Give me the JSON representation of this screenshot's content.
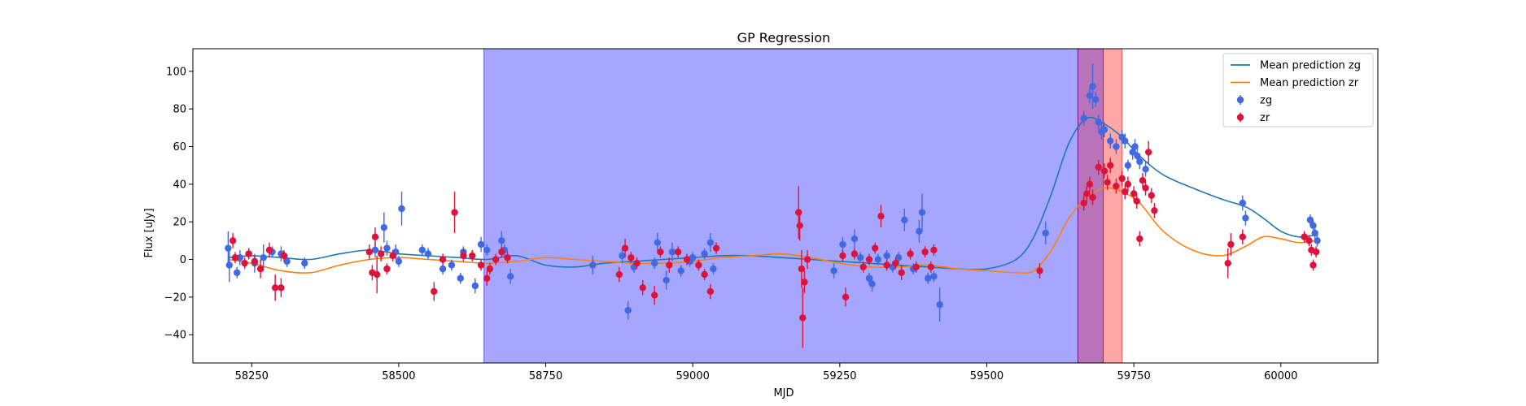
{
  "chart_data": {
    "type": "scatter",
    "title": "GP Regression",
    "xlabel": "MJD",
    "ylabel": "Flux [uJy]",
    "xlim": [
      58150,
      60165
    ],
    "ylim": [
      -55,
      112
    ],
    "xticks": [
      58250,
      58500,
      58750,
      59000,
      59250,
      59500,
      59750,
      60000
    ],
    "yticks": [
      -40,
      -20,
      0,
      20,
      40,
      60,
      80,
      100
    ],
    "grid": false,
    "legend_position": "top-right",
    "colors": {
      "zg_line": "#1f77b4",
      "zr_line": "#ff7f0e",
      "zg_points": "#4169e1",
      "zr_points": "#dc143c",
      "band_blue": "#0000ff",
      "band_purple": "#800080",
      "band_red": "#ff0000"
    },
    "shaded_regions": [
      {
        "x0": 58645,
        "x1": 59655,
        "color": "band_blue",
        "opacity": 0.35
      },
      {
        "x0": 59655,
        "x1": 59698,
        "color": "band_purple",
        "opacity": 0.55
      },
      {
        "x0": 59698,
        "x1": 59730,
        "color": "band_red",
        "opacity": 0.35
      }
    ],
    "series": [
      {
        "name": "Mean prediction zg",
        "kind": "line",
        "color": "zg_line",
        "x": [
          58210,
          58250,
          58300,
          58350,
          58400,
          58450,
          58500,
          58550,
          58600,
          58650,
          58700,
          58750,
          58800,
          58850,
          58900,
          58950,
          59000,
          59050,
          59100,
          59150,
          59200,
          59250,
          59300,
          59350,
          59400,
          59450,
          59500,
          59550,
          59580,
          59610,
          59640,
          59670,
          59700,
          59730,
          59760,
          59800,
          59850,
          59900,
          59940,
          59970,
          60000,
          60030,
          60060
        ],
        "y": [
          1,
          2,
          1,
          0,
          3,
          5,
          3,
          2,
          1,
          0,
          2,
          -3,
          -4,
          -2,
          -1,
          0,
          1,
          2,
          2,
          1,
          0,
          -1,
          -2,
          -3,
          -4,
          -5,
          -5,
          0,
          12,
          35,
          62,
          75,
          72,
          65,
          55,
          45,
          38,
          32,
          28,
          22,
          15,
          12,
          13
        ]
      },
      {
        "name": "Mean prediction zr",
        "kind": "line",
        "color": "zr_line",
        "x": [
          58210,
          58250,
          58300,
          58350,
          58400,
          58450,
          58500,
          58550,
          58600,
          58650,
          58700,
          58750,
          58800,
          58850,
          58900,
          58950,
          59000,
          59050,
          59100,
          59150,
          59200,
          59250,
          59300,
          59350,
          59400,
          59450,
          59500,
          59550,
          59580,
          59610,
          59640,
          59670,
          59700,
          59730,
          59760,
          59800,
          59850,
          59900,
          59940,
          59970,
          60000,
          60030,
          60060
        ],
        "y": [
          0,
          -2,
          -6,
          -7,
          -3,
          0,
          1,
          0,
          -1,
          -2,
          -1,
          1,
          0,
          -1,
          -2,
          -2,
          -1,
          1,
          2,
          3,
          1,
          -2,
          -4,
          -4,
          -3,
          -5,
          -6,
          -7,
          -6,
          5,
          22,
          33,
          38,
          36,
          30,
          15,
          5,
          2,
          7,
          12,
          11,
          9,
          10
        ]
      },
      {
        "name": "zg",
        "kind": "errorbar",
        "color": "zg_points",
        "points": [
          [
            58210,
            6,
            9
          ],
          [
            58212,
            -3,
            9
          ],
          [
            58225,
            -7,
            3
          ],
          [
            58230,
            1,
            4
          ],
          [
            58245,
            3,
            3
          ],
          [
            58255,
            -2,
            5
          ],
          [
            58270,
            1,
            7
          ],
          [
            58285,
            4,
            3
          ],
          [
            58300,
            3,
            4
          ],
          [
            58310,
            -1,
            3
          ],
          [
            58340,
            -2,
            3
          ],
          [
            58460,
            5,
            4
          ],
          [
            58475,
            17,
            8
          ],
          [
            58480,
            6,
            4
          ],
          [
            58495,
            4,
            4
          ],
          [
            58500,
            -1,
            3
          ],
          [
            58505,
            27,
            9
          ],
          [
            58540,
            5,
            3
          ],
          [
            58550,
            3,
            3
          ],
          [
            58575,
            -5,
            3
          ],
          [
            58590,
            -3,
            3
          ],
          [
            58605,
            -10,
            3
          ],
          [
            58610,
            4,
            3
          ],
          [
            58630,
            -14,
            4
          ],
          [
            58640,
            8,
            4
          ],
          [
            58650,
            5,
            3
          ],
          [
            58675,
            10,
            5
          ],
          [
            58680,
            5,
            3
          ],
          [
            58690,
            -9,
            4
          ],
          [
            58830,
            -3,
            5
          ],
          [
            58880,
            2,
            4
          ],
          [
            58890,
            -27,
            5
          ],
          [
            58900,
            -4,
            3
          ],
          [
            58935,
            -2,
            3
          ],
          [
            58940,
            9,
            5
          ],
          [
            58955,
            -11,
            5
          ],
          [
            58965,
            4,
            5
          ],
          [
            58980,
            -6,
            3
          ],
          [
            58995,
            -1,
            3
          ],
          [
            59000,
            1,
            3
          ],
          [
            59020,
            3,
            3
          ],
          [
            59030,
            9,
            5
          ],
          [
            59035,
            -5,
            3
          ],
          [
            59240,
            -6,
            4
          ],
          [
            59255,
            8,
            4
          ],
          [
            59275,
            11,
            5
          ],
          [
            59285,
            1,
            3
          ],
          [
            59300,
            -10,
            3
          ],
          [
            59305,
            -13,
            4
          ],
          [
            59315,
            0,
            3
          ],
          [
            59330,
            2,
            3
          ],
          [
            59340,
            -4,
            3
          ],
          [
            59350,
            1,
            3
          ],
          [
            59360,
            21,
            6
          ],
          [
            59375,
            -5,
            3
          ],
          [
            59385,
            15,
            6
          ],
          [
            59390,
            25,
            10
          ],
          [
            59400,
            -10,
            3
          ],
          [
            59410,
            -9,
            3
          ],
          [
            59420,
            -24,
            9
          ],
          [
            59600,
            14,
            6
          ],
          [
            59665,
            75,
            4
          ],
          [
            59675,
            87,
            4
          ],
          [
            59680,
            92,
            12
          ],
          [
            59685,
            85,
            4
          ],
          [
            59690,
            73,
            4
          ],
          [
            59695,
            68,
            4
          ],
          [
            59700,
            69,
            4
          ],
          [
            59710,
            63,
            4
          ],
          [
            59720,
            60,
            4
          ],
          [
            59730,
            65,
            4
          ],
          [
            59735,
            63,
            4
          ],
          [
            59740,
            50,
            3
          ],
          [
            59748,
            57,
            4
          ],
          [
            59752,
            60,
            4
          ],
          [
            59756,
            55,
            4
          ],
          [
            59760,
            52,
            4
          ],
          [
            59770,
            48,
            4
          ],
          [
            59935,
            30,
            4
          ],
          [
            59940,
            22,
            4
          ],
          [
            60050,
            21,
            3
          ],
          [
            60055,
            18,
            3
          ],
          [
            60058,
            14,
            3
          ],
          [
            60062,
            10,
            3
          ]
        ]
      },
      {
        "name": "zr",
        "kind": "errorbar",
        "color": "zr_points",
        "points": [
          [
            58218,
            10,
            4
          ],
          [
            58222,
            1,
            3
          ],
          [
            58238,
            -2,
            3
          ],
          [
            58245,
            3,
            3
          ],
          [
            58255,
            -1,
            3
          ],
          [
            58265,
            -5,
            5
          ],
          [
            58280,
            5,
            4
          ],
          [
            58290,
            -15,
            7
          ],
          [
            58300,
            -15,
            5
          ],
          [
            58305,
            2,
            3
          ],
          [
            58450,
            4,
            4
          ],
          [
            58455,
            -7,
            4
          ],
          [
            58460,
            12,
            5
          ],
          [
            58463,
            -8,
            10
          ],
          [
            58470,
            3,
            4
          ],
          [
            58480,
            -5,
            3
          ],
          [
            58490,
            2,
            3
          ],
          [
            58560,
            -17,
            5
          ],
          [
            58575,
            0,
            3
          ],
          [
            58595,
            25,
            11
          ],
          [
            58610,
            2,
            3
          ],
          [
            58625,
            2,
            3
          ],
          [
            58640,
            -3,
            3
          ],
          [
            58650,
            -10,
            4
          ],
          [
            58655,
            -5,
            3
          ],
          [
            58665,
            0,
            3
          ],
          [
            58675,
            4,
            3
          ],
          [
            58685,
            1,
            3
          ],
          [
            58875,
            -8,
            4
          ],
          [
            58885,
            6,
            5
          ],
          [
            58895,
            1,
            3
          ],
          [
            58905,
            -2,
            3
          ],
          [
            58915,
            -15,
            4
          ],
          [
            58935,
            -19,
            5
          ],
          [
            58945,
            4,
            3
          ],
          [
            58960,
            -3,
            4
          ],
          [
            58975,
            4,
            3
          ],
          [
            58990,
            0,
            3
          ],
          [
            59010,
            -3,
            3
          ],
          [
            59020,
            -8,
            3
          ],
          [
            59030,
            -17,
            4
          ],
          [
            59040,
            6,
            3
          ],
          [
            59180,
            25,
            14
          ],
          [
            59182,
            18,
            8
          ],
          [
            59185,
            -5,
            10
          ],
          [
            59187,
            -31,
            16
          ],
          [
            59190,
            -12,
            6
          ],
          [
            59195,
            0,
            5
          ],
          [
            59255,
            2,
            3
          ],
          [
            59260,
            -20,
            5
          ],
          [
            59275,
            3,
            3
          ],
          [
            59290,
            -4,
            3
          ],
          [
            59300,
            0,
            3
          ],
          [
            59310,
            6,
            3
          ],
          [
            59320,
            23,
            6
          ],
          [
            59330,
            -3,
            3
          ],
          [
            59345,
            -2,
            3
          ],
          [
            59355,
            -7,
            4
          ],
          [
            59370,
            3,
            3
          ],
          [
            59380,
            -4,
            3
          ],
          [
            59395,
            4,
            3
          ],
          [
            59405,
            -4,
            3
          ],
          [
            59410,
            5,
            3
          ],
          [
            59590,
            -6,
            4
          ],
          [
            59665,
            30,
            4
          ],
          [
            59670,
            35,
            4
          ],
          [
            59675,
            40,
            4
          ],
          [
            59680,
            33,
            4
          ],
          [
            59690,
            49,
            4
          ],
          [
            59700,
            47,
            4
          ],
          [
            59705,
            41,
            4
          ],
          [
            59710,
            50,
            4
          ],
          [
            59720,
            39,
            4
          ],
          [
            59730,
            43,
            4
          ],
          [
            59735,
            36,
            4
          ],
          [
            59740,
            40,
            4
          ],
          [
            59750,
            35,
            4
          ],
          [
            59755,
            31,
            4
          ],
          [
            59760,
            11,
            4
          ],
          [
            59765,
            42,
            4
          ],
          [
            59770,
            38,
            4
          ],
          [
            59775,
            57,
            6
          ],
          [
            59780,
            34,
            4
          ],
          [
            59785,
            26,
            4
          ],
          [
            59910,
            -2,
            8
          ],
          [
            59915,
            8,
            6
          ],
          [
            59935,
            12,
            4
          ],
          [
            60040,
            12,
            3
          ],
          [
            60048,
            10,
            3
          ],
          [
            60052,
            5,
            3
          ],
          [
            60055,
            -3,
            3
          ],
          [
            60060,
            4,
            3
          ]
        ]
      }
    ]
  }
}
